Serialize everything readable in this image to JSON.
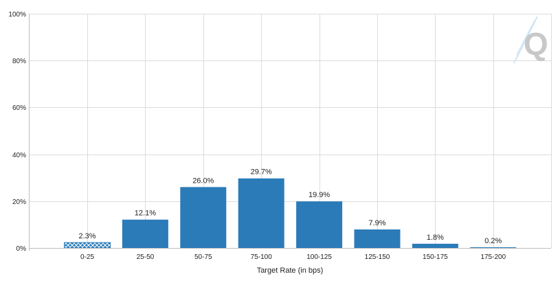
{
  "chart_data": {
    "type": "bar",
    "categories": [
      "0-25",
      "25-50",
      "50-75",
      "75-100",
      "100-125",
      "125-150",
      "150-175",
      "175-200"
    ],
    "values": [
      2.3,
      12.1,
      26.0,
      29.7,
      19.9,
      7.9,
      1.8,
      0.2
    ],
    "value_labels": [
      "2.3%",
      "12.1%",
      "26.0%",
      "29.7%",
      "19.9%",
      "7.9%",
      "1.8%",
      "0.2%"
    ],
    "hatched_categories": [
      "0-25"
    ],
    "title": "",
    "xlabel": "Target Rate (in bps)",
    "ylabel": "",
    "ylim": [
      0,
      100
    ],
    "yticks": [
      0,
      20,
      40,
      60,
      80,
      100
    ],
    "ytick_labels": [
      "0%",
      "20%",
      "40%",
      "60%",
      "80%",
      "100%"
    ],
    "grid": true,
    "bar_color": "#2b7bb9",
    "watermark": "Q"
  }
}
